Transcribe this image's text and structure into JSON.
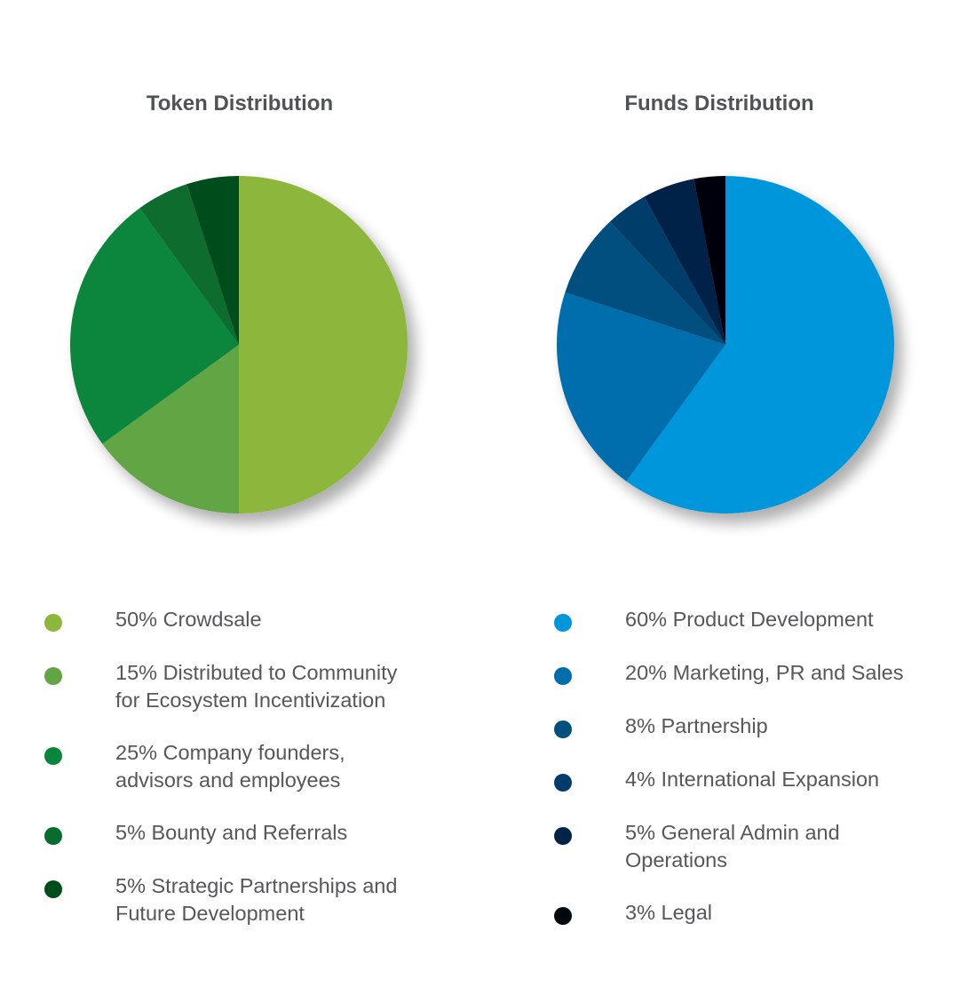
{
  "chart_data": [
    {
      "type": "pie",
      "title": "Token Distribution",
      "categories": [
        "50% Crowdsale",
        "15% Distributed to Community\nfor Ecosystem Incentivization",
        "25% Company founders,\nadvisors and employees",
        "5% Bounty and Referrals",
        "5% Strategic Partnerships and\nFuture Development"
      ],
      "values": [
        50,
        15,
        25,
        5,
        5
      ],
      "colors": [
        "#8db63d",
        "#62a544",
        "#0a863c",
        "#076c2e",
        "#004d1c"
      ],
      "legend": "bottom"
    },
    {
      "type": "pie",
      "title": "Funds Distribution",
      "categories": [
        "60% Product Development",
        "20% Marketing, PR and Sales",
        "8% Partnership",
        "4% International Expansion",
        "5% General Admin and\nOperations",
        "3% Legal"
      ],
      "values": [
        60,
        20,
        8,
        4,
        5,
        3
      ],
      "colors": [
        "#0096db",
        "#006eac",
        "#00507e",
        "#003c6b",
        "#002448",
        "#02060d"
      ],
      "legend": "bottom"
    }
  ]
}
